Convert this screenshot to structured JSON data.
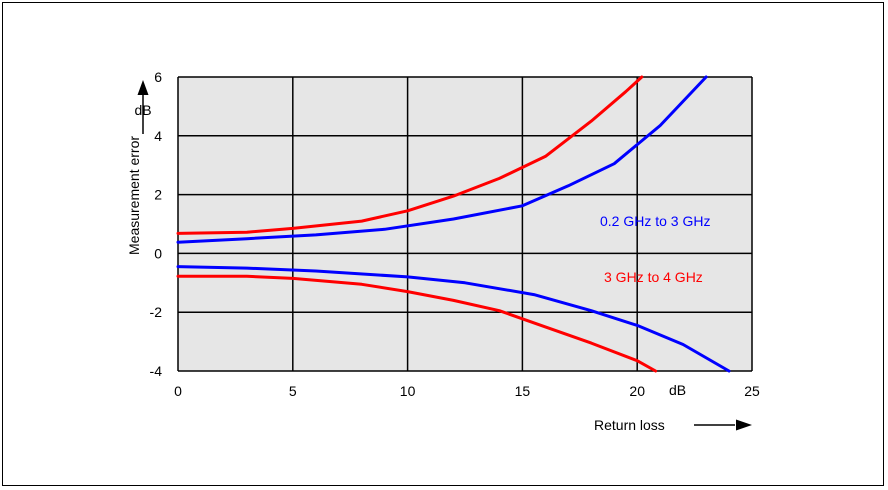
{
  "chart_data": {
    "type": "line",
    "title": "",
    "ylabel": "Measurement error",
    "y_unit": "dB",
    "xlabel": "Return loss",
    "x_unit": "dB",
    "xlim": [
      0,
      25
    ],
    "ylim": [
      -4,
      6
    ],
    "x_ticks": [
      0,
      5,
      10,
      15,
      20,
      25
    ],
    "y_ticks": [
      -4,
      -2,
      0,
      2,
      4,
      6
    ],
    "grid": true,
    "series": [
      {
        "name": "0.2 GHz to 3 GHz",
        "color": "#0000ff",
        "upper": [
          [
            0,
            0.38
          ],
          [
            3,
            0.5
          ],
          [
            6,
            0.63
          ],
          [
            9,
            0.82
          ],
          [
            12,
            1.17
          ],
          [
            15,
            1.62
          ],
          [
            17,
            2.3
          ],
          [
            19,
            3.05
          ],
          [
            20,
            3.7
          ],
          [
            21,
            4.35
          ],
          [
            23,
            6.0
          ]
        ],
        "lower": [
          [
            0,
            -0.45
          ],
          [
            3,
            -0.5
          ],
          [
            6,
            -0.6
          ],
          [
            10,
            -0.8
          ],
          [
            12.5,
            -1.0
          ],
          [
            15.5,
            -1.4
          ],
          [
            18,
            -1.95
          ],
          [
            20,
            -2.45
          ],
          [
            22,
            -3.1
          ],
          [
            24,
            -4.0
          ]
        ]
      },
      {
        "name": "3 GHz to 4 GHz",
        "color": "#ff0000",
        "upper": [
          [
            0,
            0.68
          ],
          [
            3,
            0.72
          ],
          [
            5,
            0.85
          ],
          [
            8,
            1.1
          ],
          [
            10,
            1.45
          ],
          [
            12,
            1.95
          ],
          [
            14,
            2.55
          ],
          [
            16,
            3.3
          ],
          [
            18,
            4.5
          ],
          [
            19.5,
            5.5
          ],
          [
            20.2,
            6.0
          ]
        ],
        "lower": [
          [
            0,
            -0.78
          ],
          [
            3,
            -0.78
          ],
          [
            5,
            -0.85
          ],
          [
            8,
            -1.05
          ],
          [
            10,
            -1.3
          ],
          [
            12,
            -1.6
          ],
          [
            14,
            -1.95
          ],
          [
            16,
            -2.5
          ],
          [
            18,
            -3.05
          ],
          [
            20,
            -3.65
          ],
          [
            20.8,
            -4.0
          ]
        ]
      }
    ]
  }
}
